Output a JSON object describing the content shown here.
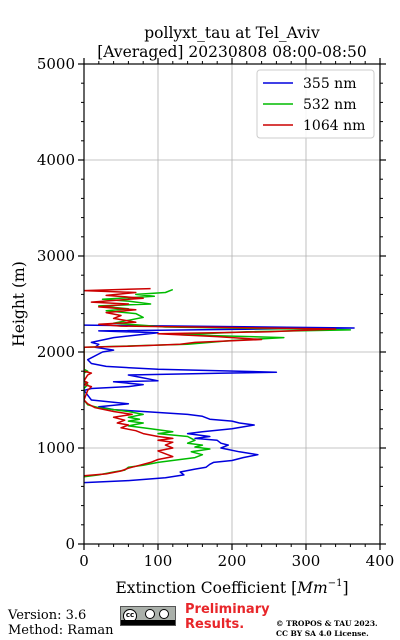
{
  "chart_data": {
    "type": "line",
    "title_line1": "pollyxt_tau at Tel_Aviv",
    "title_line2": "[Averaged] 20230808 08:00-08:50",
    "xlabel_main": "Extinction Coefficient [",
    "xlabel_unit": "Mm",
    "xlabel_exp": "−1",
    "xlabel_end": "]",
    "ylabel": "Height (m)",
    "xlim": [
      0,
      400
    ],
    "ylim": [
      0,
      5000
    ],
    "x_ticks": [
      "0",
      "100",
      "200",
      "300",
      "400"
    ],
    "y_ticks": [
      "0",
      "1000",
      "2000",
      "3000",
      "4000",
      "5000"
    ],
    "grid": true,
    "legend_position": "top-right",
    "series": [
      {
        "name": "355 nm",
        "color": "#0000dd",
        "points": [
          [
            0,
            640
          ],
          [
            60,
            660
          ],
          [
            110,
            690
          ],
          [
            135,
            720
          ],
          [
            130,
            750
          ],
          [
            150,
            780
          ],
          [
            165,
            800
          ],
          [
            170,
            830
          ],
          [
            175,
            850
          ],
          [
            200,
            870
          ],
          [
            215,
            900
          ],
          [
            235,
            930
          ],
          [
            210,
            960
          ],
          [
            185,
            1000
          ],
          [
            195,
            1030
          ],
          [
            185,
            1050
          ],
          [
            180,
            1080
          ],
          [
            150,
            1100
          ],
          [
            170,
            1120
          ],
          [
            140,
            1150
          ],
          [
            160,
            1170
          ],
          [
            200,
            1200
          ],
          [
            230,
            1240
          ],
          [
            210,
            1260
          ],
          [
            200,
            1280
          ],
          [
            170,
            1300
          ],
          [
            160,
            1330
          ],
          [
            140,
            1350
          ],
          [
            80,
            1380
          ],
          [
            40,
            1400
          ],
          [
            20,
            1430
          ],
          [
            60,
            1460
          ],
          [
            10,
            1500
          ],
          [
            5,
            1550
          ],
          [
            0,
            1600
          ],
          [
            10,
            1620
          ],
          [
            60,
            1640
          ],
          [
            80,
            1660
          ],
          [
            40,
            1690
          ],
          [
            100,
            1700
          ],
          [
            80,
            1730
          ],
          [
            60,
            1760
          ],
          [
            190,
            1780
          ],
          [
            260,
            1790
          ],
          [
            100,
            1820
          ],
          [
            30,
            1850
          ],
          [
            10,
            1880
          ],
          [
            5,
            1920
          ],
          [
            25,
            2000
          ],
          [
            40,
            2020
          ],
          [
            15,
            2050
          ],
          [
            20,
            2080
          ],
          [
            10,
            2100
          ],
          [
            40,
            2150
          ],
          [
            100,
            2200
          ],
          [
            20,
            2220
          ],
          [
            365,
            2250
          ],
          [
            0,
            2280
          ]
        ]
      },
      {
        "name": "532 nm",
        "color": "#00bb00",
        "points": [
          [
            0,
            700
          ],
          [
            20,
            720
          ],
          [
            40,
            750
          ],
          [
            55,
            770
          ],
          [
            60,
            800
          ],
          [
            80,
            820
          ],
          [
            100,
            850
          ],
          [
            130,
            880
          ],
          [
            150,
            900
          ],
          [
            160,
            930
          ],
          [
            145,
            960
          ],
          [
            170,
            990
          ],
          [
            150,
            1010
          ],
          [
            160,
            1030
          ],
          [
            140,
            1050
          ],
          [
            150,
            1080
          ],
          [
            145,
            1100
          ],
          [
            140,
            1120
          ],
          [
            100,
            1150
          ],
          [
            120,
            1170
          ],
          [
            90,
            1200
          ],
          [
            60,
            1230
          ],
          [
            80,
            1260
          ],
          [
            60,
            1280
          ],
          [
            75,
            1300
          ],
          [
            60,
            1320
          ],
          [
            80,
            1350
          ],
          [
            60,
            1380
          ],
          [
            20,
            1420
          ],
          [
            5,
            1450
          ],
          [
            0,
            1500
          ],
          [
            0,
            1620
          ],
          [
            5,
            1660
          ],
          [
            0,
            1700
          ],
          [
            0,
            1780
          ],
          [
            5,
            1800
          ],
          [
            0,
            1820
          ],
          [
            0,
            2050
          ],
          [
            140,
            2080
          ],
          [
            170,
            2100
          ],
          [
            200,
            2120
          ],
          [
            270,
            2150
          ],
          [
            130,
            2180
          ],
          [
            220,
            2210
          ],
          [
            360,
            2230
          ],
          [
            110,
            2260
          ],
          [
            40,
            2300
          ],
          [
            60,
            2330
          ],
          [
            80,
            2360
          ],
          [
            70,
            2400
          ],
          [
            30,
            2430
          ],
          [
            60,
            2450
          ],
          [
            20,
            2480
          ],
          [
            90,
            2500
          ],
          [
            60,
            2530
          ],
          [
            25,
            2550
          ],
          [
            95,
            2580
          ],
          [
            70,
            2600
          ],
          [
            110,
            2620
          ],
          [
            120,
            2650
          ]
        ]
      },
      {
        "name": "1064 nm",
        "color": "#cc0000",
        "points": [
          [
            0,
            710
          ],
          [
            30,
            730
          ],
          [
            50,
            760
          ],
          [
            60,
            790
          ],
          [
            75,
            820
          ],
          [
            90,
            850
          ],
          [
            100,
            880
          ],
          [
            120,
            910
          ],
          [
            110,
            940
          ],
          [
            100,
            970
          ],
          [
            120,
            1000
          ],
          [
            110,
            1030
          ],
          [
            120,
            1060
          ],
          [
            100,
            1080
          ],
          [
            120,
            1100
          ],
          [
            100,
            1120
          ],
          [
            80,
            1150
          ],
          [
            70,
            1180
          ],
          [
            50,
            1210
          ],
          [
            60,
            1240
          ],
          [
            45,
            1260
          ],
          [
            55,
            1290
          ],
          [
            40,
            1320
          ],
          [
            65,
            1350
          ],
          [
            40,
            1380
          ],
          [
            15,
            1420
          ],
          [
            5,
            1460
          ],
          [
            0,
            1500
          ],
          [
            5,
            1600
          ],
          [
            10,
            1640
          ],
          [
            0,
            1660
          ],
          [
            5,
            1680
          ],
          [
            0,
            1700
          ],
          [
            5,
            1760
          ],
          [
            10,
            1780
          ],
          [
            0,
            1800
          ],
          [
            0,
            2050
          ],
          [
            60,
            2060
          ],
          [
            130,
            2080
          ],
          [
            150,
            2100
          ],
          [
            240,
            2130
          ],
          [
            180,
            2160
          ],
          [
            100,
            2190
          ],
          [
            250,
            2210
          ],
          [
            340,
            2240
          ],
          [
            50,
            2270
          ],
          [
            20,
            2290
          ],
          [
            70,
            2310
          ],
          [
            40,
            2350
          ],
          [
            50,
            2380
          ],
          [
            30,
            2410
          ],
          [
            70,
            2440
          ],
          [
            20,
            2470
          ],
          [
            60,
            2500
          ],
          [
            10,
            2520
          ],
          [
            80,
            2560
          ],
          [
            30,
            2590
          ],
          [
            70,
            2620
          ],
          [
            0,
            2640
          ],
          [
            90,
            2660
          ]
        ]
      }
    ]
  },
  "footer": {
    "version": "Version: 3.6",
    "method": "Method: Raman",
    "license_badge": "cc-by-sa-badge",
    "preliminary_line1": "Preliminary",
    "preliminary_line2": "Results.",
    "copyright_line1": "© TROPOS & TAU 2023.",
    "copyright_line2": "CC BY SA 4.0 License."
  }
}
